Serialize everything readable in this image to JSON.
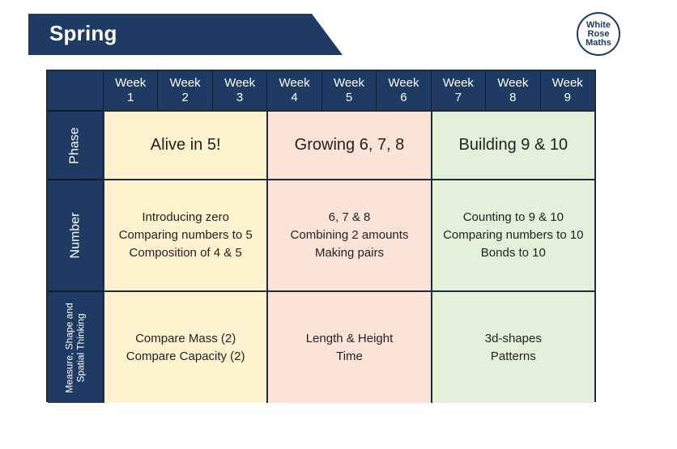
{
  "header": {
    "title": "Spring"
  },
  "logo": {
    "line1": "White",
    "line2": "Rose",
    "line3": "Maths"
  },
  "weeks": [
    {
      "label": "Week",
      "num": "1"
    },
    {
      "label": "Week",
      "num": "2"
    },
    {
      "label": "Week",
      "num": "3"
    },
    {
      "label": "Week",
      "num": "4"
    },
    {
      "label": "Week",
      "num": "5"
    },
    {
      "label": "Week",
      "num": "6"
    },
    {
      "label": "Week",
      "num": "7"
    },
    {
      "label": "Week",
      "num": "8"
    },
    {
      "label": "Week",
      "num": "9"
    }
  ],
  "rows": {
    "phase": "Phase",
    "number": "Number",
    "measure_line1": "Measure, Shape and",
    "measure_line2": "Spatial Thinking"
  },
  "phase": [
    "Alive in 5!",
    "Growing 6, 7, 8",
    "Building 9 & 10"
  ],
  "number": [
    [
      "Introducing zero",
      "Comparing numbers to 5",
      "Composition of 4 & 5"
    ],
    [
      "6, 7 & 8",
      "Combining 2 amounts",
      "Making pairs"
    ],
    [
      "Counting to 9 & 10",
      "Comparing numbers to 10",
      "Bonds to 10"
    ]
  ],
  "measure": [
    [
      "Compare Mass (2)",
      "Compare Capacity (2)"
    ],
    [
      "Length & Height",
      "Time"
    ],
    [
      "3d-shapes",
      "Patterns"
    ]
  ],
  "colors": {
    "navy": "#1f3a63",
    "yellow": "#fff3cf",
    "pink": "#fbe3d8",
    "green": "#e3f0da"
  }
}
